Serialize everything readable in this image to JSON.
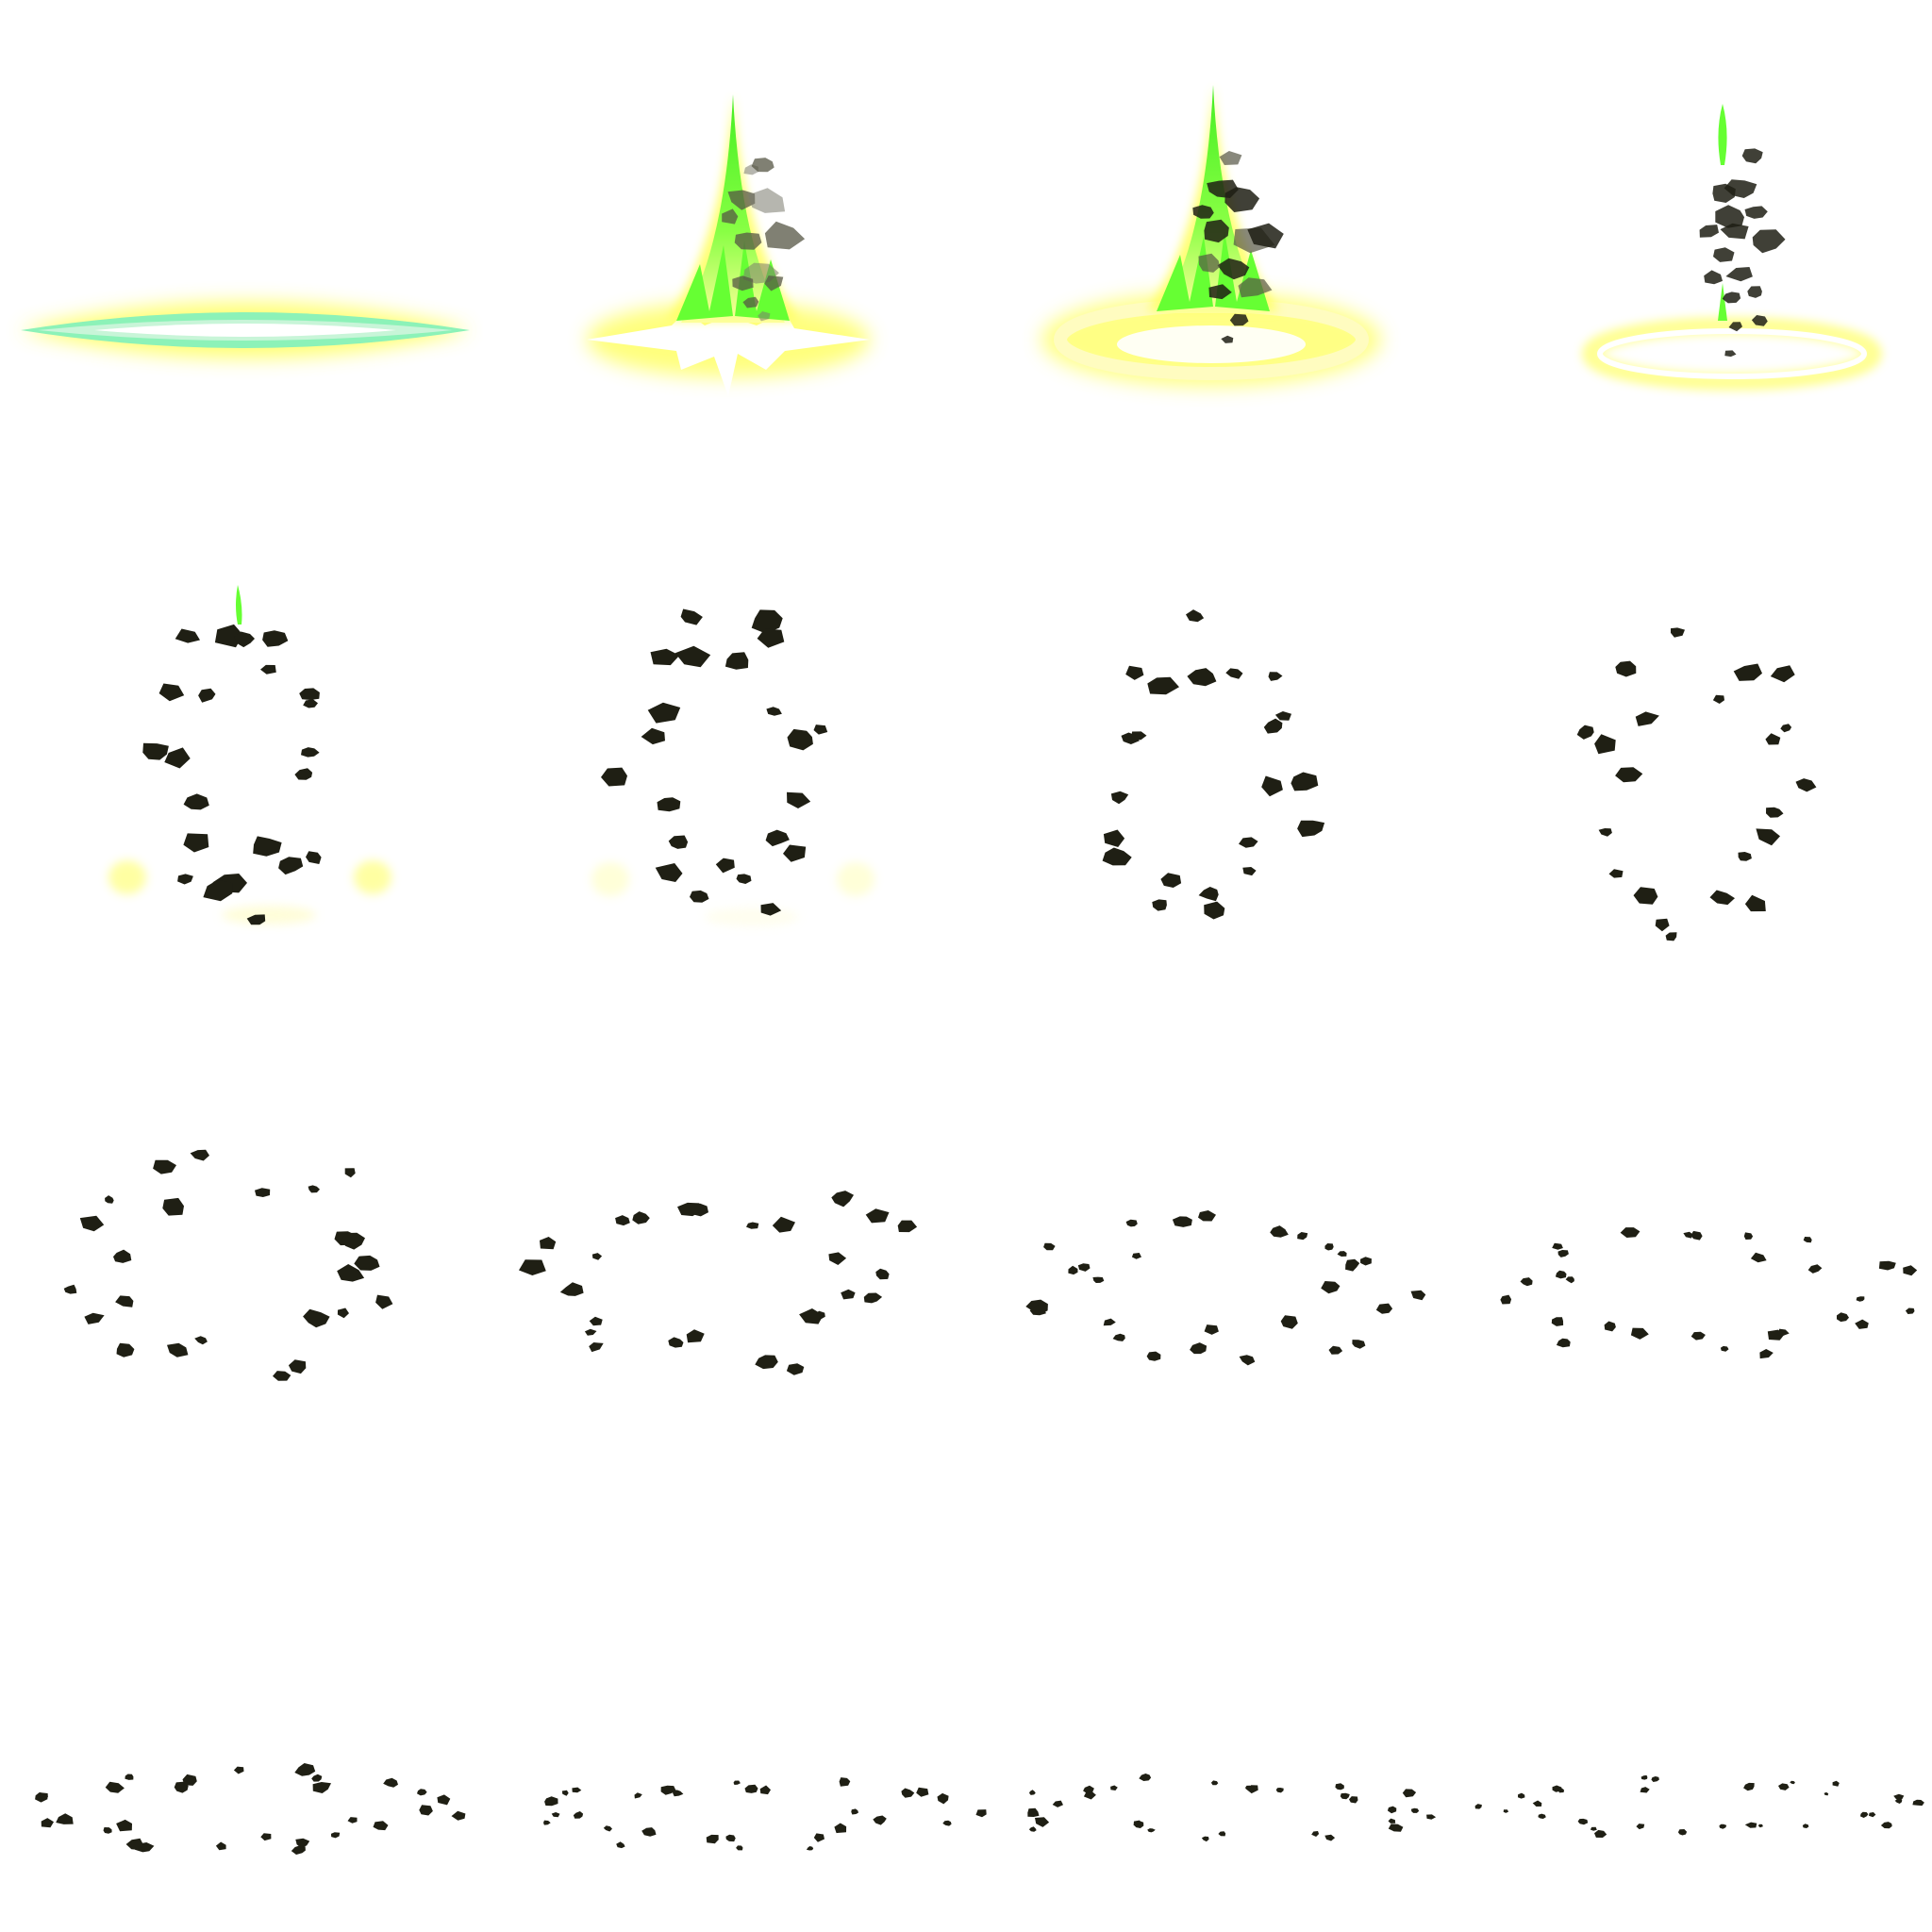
{
  "sprite_sheet": {
    "columns": 4,
    "rows": 4,
    "frame_count": 16,
    "colors": {
      "background": "#ffffff",
      "glow_yellow": "#ffff66",
      "glow_soft": "#fffcc0",
      "energy_green": "#66ff33",
      "energy_mint": "#8cf2b8",
      "core_white": "#ffffff",
      "rock_dark": "#1f1f14",
      "rock_grey": "#555544",
      "rock_ghost": "#7a7a6e"
    },
    "frames": [
      {
        "index": 1,
        "phase": "flash-line"
      },
      {
        "index": 2,
        "phase": "eruption"
      },
      {
        "index": 3,
        "phase": "eruption-peak"
      },
      {
        "index": 4,
        "phase": "rocks-rising"
      },
      {
        "index": 5,
        "phase": "rocks-ring-glow"
      },
      {
        "index": 6,
        "phase": "rocks-ring"
      },
      {
        "index": 7,
        "phase": "rocks-ring"
      },
      {
        "index": 8,
        "phase": "rocks-ring"
      },
      {
        "index": 9,
        "phase": "rocks-scatter"
      },
      {
        "index": 10,
        "phase": "rocks-scatter"
      },
      {
        "index": 11,
        "phase": "rocks-falling"
      },
      {
        "index": 12,
        "phase": "rocks-falling"
      },
      {
        "index": 13,
        "phase": "rocks-ground"
      },
      {
        "index": 14,
        "phase": "rocks-ground"
      },
      {
        "index": 15,
        "phase": "rocks-ground"
      },
      {
        "index": 16,
        "phase": "rocks-ground"
      }
    ]
  }
}
